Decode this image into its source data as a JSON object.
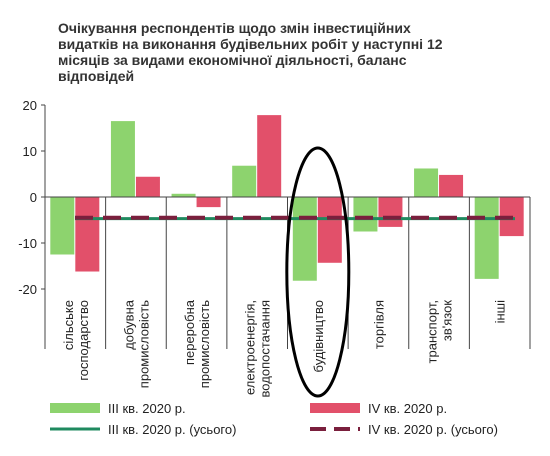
{
  "chart_data": {
    "type": "bar",
    "title_lines": [
      "Очікування респондентів щодо змін інвестиційних",
      "видатків  на виконання будівельних робіт у наступні 12",
      "місяців за видами економічної діяльності, баланс",
      "відповідей"
    ],
    "categories": [
      [
        "сільське",
        "господарство"
      ],
      [
        "добувна",
        "промисловість"
      ],
      [
        "переробна",
        "промисловість"
      ],
      [
        "електроенергія,",
        "водопостачання"
      ],
      [
        "будівництво"
      ],
      [
        "торгівля"
      ],
      [
        "транспорт,",
        "зв'язок"
      ],
      [
        "інші"
      ]
    ],
    "series": [
      {
        "name": "ІІІ кв. 2020 р.",
        "color": "#8dd36e",
        "values": [
          -12.5,
          16.5,
          0.7,
          6.8,
          -18.2,
          -7.5,
          6.2,
          -17.8
        ]
      },
      {
        "name": "ІV кв. 2020 р.",
        "color": "#e2506a",
        "values": [
          -16.2,
          4.4,
          -2.2,
          17.8,
          -14.3,
          -6.5,
          4.8,
          -8.5
        ]
      }
    ],
    "totals": [
      {
        "name": "ІІІ кв. 2020 р. (усього)",
        "color": "#1f8a5f",
        "style": "solid",
        "value": -4.7
      },
      {
        "name": "ІV кв. 2020 р. (усього)",
        "color": "#7a1f3d",
        "style": "dashed",
        "value": -4.5
      }
    ],
    "yticks": [
      "20",
      "10",
      "0",
      "-10",
      "-20"
    ],
    "ylim": [
      -20,
      20
    ],
    "grid": false,
    "legend_position": "bottom"
  }
}
